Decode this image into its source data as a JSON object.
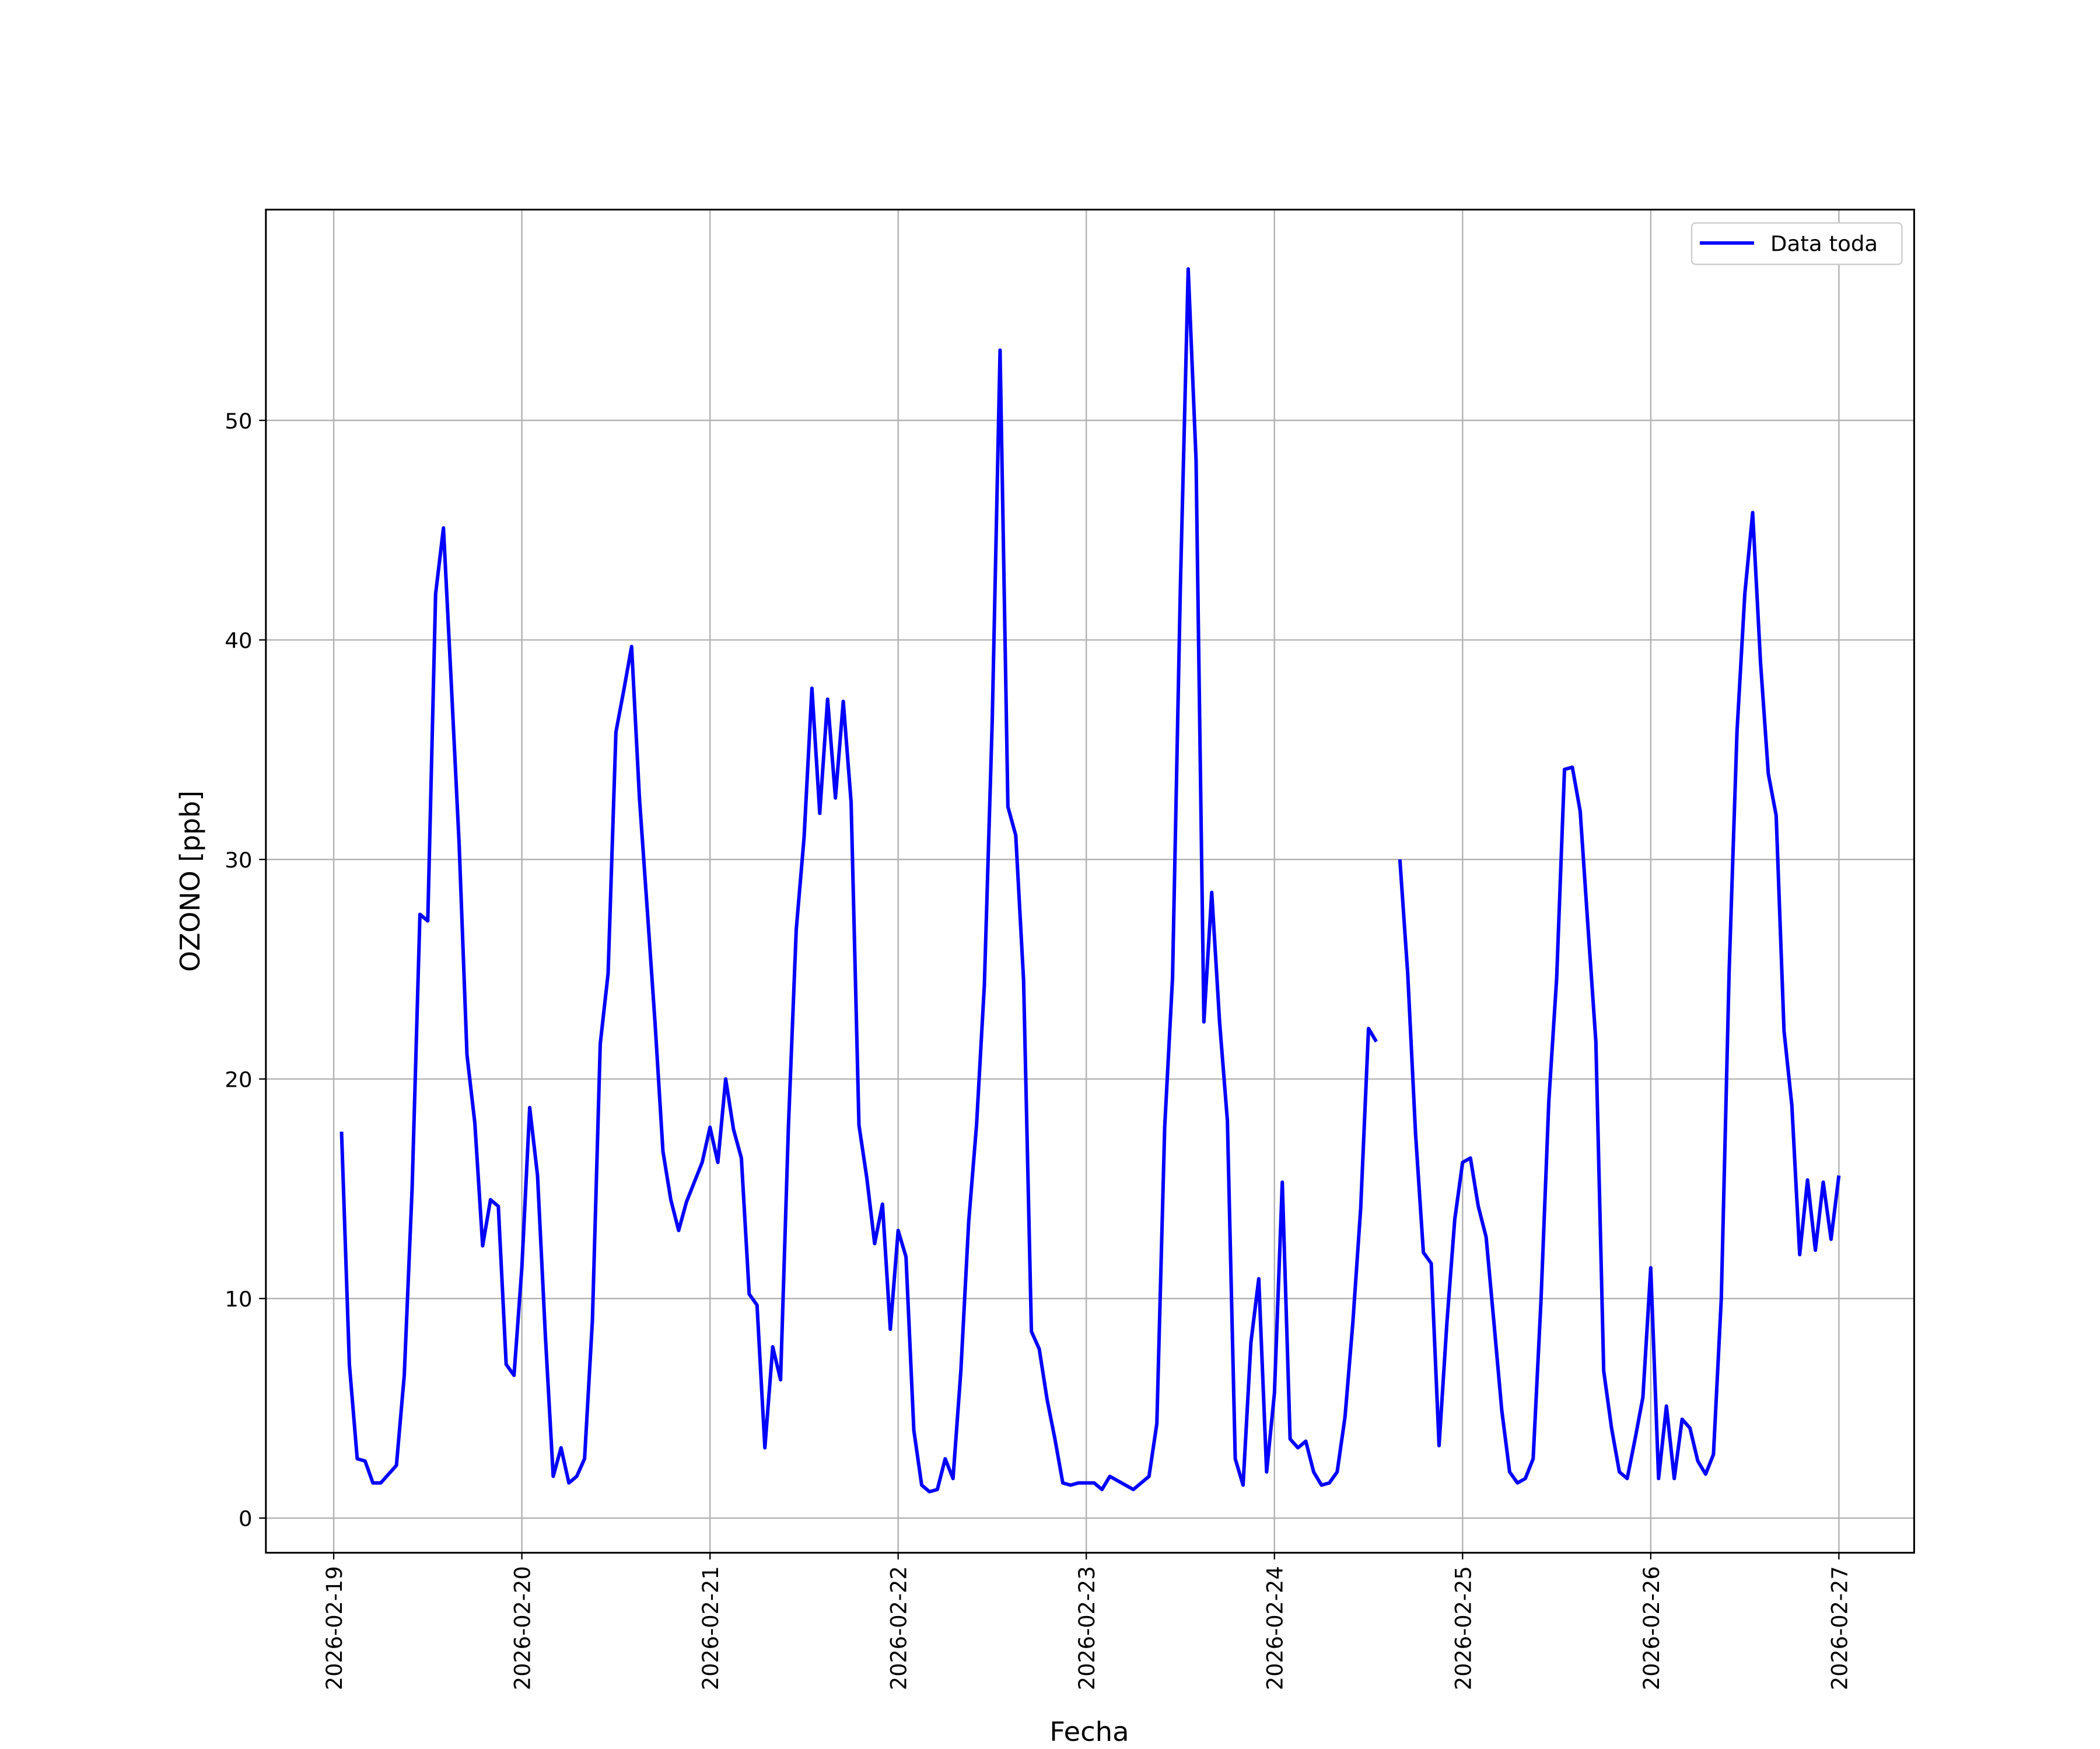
{
  "chart_data": {
    "type": "line",
    "xlabel": "Fecha",
    "ylabel": "OZONO [ppb]",
    "x": [
      "2026-02-19 01:00",
      "2026-02-19 02:00",
      "2026-02-19 03:00",
      "2026-02-19 04:00",
      "2026-02-19 05:00",
      "2026-02-19 06:00",
      "2026-02-19 07:00",
      "2026-02-19 08:00",
      "2026-02-19 09:00",
      "2026-02-19 10:00",
      "2026-02-19 11:00",
      "2026-02-19 12:00",
      "2026-02-19 13:00",
      "2026-02-19 14:00",
      "2026-02-19 15:00",
      "2026-02-19 16:00",
      "2026-02-19 17:00",
      "2026-02-19 18:00",
      "2026-02-19 19:00",
      "2026-02-19 20:00",
      "2026-02-19 21:00",
      "2026-02-19 22:00",
      "2026-02-19 23:00",
      "2026-02-20 00:00",
      "2026-02-20 01:00",
      "2026-02-20 02:00",
      "2026-02-20 03:00",
      "2026-02-20 04:00",
      "2026-02-20 05:00",
      "2026-02-20 06:00",
      "2026-02-20 07:00",
      "2026-02-20 08:00",
      "2026-02-20 09:00",
      "2026-02-20 10:00",
      "2026-02-20 11:00",
      "2026-02-20 12:00",
      "2026-02-20 13:00",
      "2026-02-20 14:00",
      "2026-02-20 15:00",
      "2026-02-20 16:00",
      "2026-02-20 17:00",
      "2026-02-20 18:00",
      "2026-02-20 19:00",
      "2026-02-20 20:00",
      "2026-02-20 21:00",
      "2026-02-20 22:00",
      "2026-02-20 23:00",
      "2026-02-21 00:00",
      "2026-02-21 01:00",
      "2026-02-21 02:00",
      "2026-02-21 03:00",
      "2026-02-21 04:00",
      "2026-02-21 05:00",
      "2026-02-21 06:00",
      "2026-02-21 07:00",
      "2026-02-21 08:00",
      "2026-02-21 09:00",
      "2026-02-21 10:00",
      "2026-02-21 11:00",
      "2026-02-21 12:00",
      "2026-02-21 13:00",
      "2026-02-21 14:00",
      "2026-02-21 15:00",
      "2026-02-21 16:00",
      "2026-02-21 17:00",
      "2026-02-21 18:00",
      "2026-02-21 19:00",
      "2026-02-21 20:00",
      "2026-02-21 21:00",
      "2026-02-21 22:00",
      "2026-02-21 23:00",
      "2026-02-22 00:00",
      "2026-02-22 01:00",
      "2026-02-22 02:00",
      "2026-02-22 03:00",
      "2026-02-22 04:00",
      "2026-02-22 05:00",
      "2026-02-22 06:00",
      "2026-02-22 07:00",
      "2026-02-22 08:00",
      "2026-02-22 09:00",
      "2026-02-22 10:00",
      "2026-02-22 11:00",
      "2026-02-22 12:00",
      "2026-02-22 13:00",
      "2026-02-22 14:00",
      "2026-02-22 15:00",
      "2026-02-22 16:00",
      "2026-02-22 17:00",
      "2026-02-22 18:00",
      "2026-02-22 19:00",
      "2026-02-22 20:00",
      "2026-02-22 21:00",
      "2026-02-22 22:00",
      "2026-02-22 23:00",
      "2026-02-23 00:00",
      "2026-02-23 01:00",
      "2026-02-23 02:00",
      "2026-02-23 03:00",
      "2026-02-23 04:00",
      "2026-02-23 05:00",
      "2026-02-23 06:00",
      "2026-02-23 07:00",
      "2026-02-23 08:00",
      "2026-02-23 09:00",
      "2026-02-23 10:00",
      "2026-02-23 11:00",
      "2026-02-23 12:00",
      "2026-02-23 13:00",
      "2026-02-23 14:00",
      "2026-02-23 15:00",
      "2026-02-23 16:00",
      "2026-02-23 17:00",
      "2026-02-23 18:00",
      "2026-02-23 19:00",
      "2026-02-23 20:00",
      "2026-02-23 21:00",
      "2026-02-23 22:00",
      "2026-02-23 23:00",
      "2026-02-24 00:00",
      "2026-02-24 01:00",
      "2026-02-24 02:00",
      "2026-02-24 03:00",
      "2026-02-24 04:00",
      "2026-02-24 05:00",
      "2026-02-24 06:00",
      "2026-02-24 07:00",
      "2026-02-24 08:00",
      "2026-02-24 09:00",
      "2026-02-24 10:00",
      "2026-02-24 11:00",
      "2026-02-24 12:00",
      "2026-02-24 13:00",
      "2026-02-24 14:00",
      "2026-02-24 15:00",
      "2026-02-24 16:00",
      "2026-02-24 17:00",
      "2026-02-24 18:00",
      "2026-02-24 19:00",
      "2026-02-24 20:00",
      "2026-02-24 21:00",
      "2026-02-24 22:00",
      "2026-02-24 23:00",
      "2026-02-25 00:00",
      "2026-02-25 01:00",
      "2026-02-25 02:00",
      "2026-02-25 03:00",
      "2026-02-25 04:00",
      "2026-02-25 05:00",
      "2026-02-25 06:00",
      "2026-02-25 07:00",
      "2026-02-25 08:00",
      "2026-02-25 09:00",
      "2026-02-25 10:00",
      "2026-02-25 11:00",
      "2026-02-25 12:00",
      "2026-02-25 13:00",
      "2026-02-25 14:00",
      "2026-02-25 15:00",
      "2026-02-25 16:00",
      "2026-02-25 17:00",
      "2026-02-25 18:00",
      "2026-02-25 19:00",
      "2026-02-25 20:00",
      "2026-02-25 21:00",
      "2026-02-25 22:00",
      "2026-02-25 23:00",
      "2026-02-26 00:00",
      "2026-02-26 01:00",
      "2026-02-26 02:00",
      "2026-02-26 03:00",
      "2026-02-26 04:00",
      "2026-02-26 05:00",
      "2026-02-26 06:00",
      "2026-02-26 07:00",
      "2026-02-26 08:00",
      "2026-02-26 09:00",
      "2026-02-26 10:00",
      "2026-02-26 11:00",
      "2026-02-26 12:00",
      "2026-02-26 13:00",
      "2026-02-26 14:00",
      "2026-02-26 15:00",
      "2026-02-26 16:00",
      "2026-02-26 17:00",
      "2026-02-26 18:00",
      "2026-02-26 19:00",
      "2026-02-26 20:00",
      "2026-02-26 21:00",
      "2026-02-26 22:00",
      "2026-02-26 23:00",
      "2026-02-27 00:00"
    ],
    "series": [
      {
        "name": "Data toda",
        "color": "#0000ff",
        "values": [
          17.6,
          7.0,
          2.7,
          2.6,
          1.6,
          1.6,
          2.0,
          2.4,
          6.5,
          15.0,
          27.5,
          27.2,
          42.1,
          45.1,
          38.0,
          30.7,
          21.1,
          18.0,
          12.4,
          14.5,
          14.2,
          7.0,
          6.5,
          11.4,
          18.7,
          15.6,
          8.3,
          1.9,
          3.2,
          1.6,
          1.9,
          2.7,
          9.0,
          21.6,
          24.8,
          35.8,
          37.7,
          39.7,
          32.8,
          27.7,
          22.5,
          16.7,
          14.5,
          13.1,
          14.4,
          15.3,
          16.2,
          17.8,
          16.2,
          20.0,
          17.7,
          16.4,
          10.2,
          9.7,
          3.2,
          7.8,
          6.3,
          17.8,
          26.8,
          31.0,
          37.8,
          32.1,
          37.3,
          32.8,
          37.2,
          32.6,
          17.9,
          15.5,
          12.5,
          14.3,
          8.6,
          13.1,
          11.9,
          4.0,
          1.5,
          1.2,
          1.3,
          2.7,
          1.8,
          6.7,
          13.5,
          17.9,
          24.3,
          36.3,
          53.2,
          32.4,
          31.1,
          24.5,
          8.5,
          7.7,
          5.4,
          3.6,
          1.6,
          1.5,
          1.6,
          1.6,
          1.6,
          1.3,
          1.9,
          1.7,
          1.5,
          1.3,
          1.6,
          1.9,
          4.3,
          17.8,
          24.6,
          42.4,
          56.9,
          48.2,
          22.6,
          28.5,
          22.6,
          18.1,
          2.7,
          1.5,
          8.0,
          10.9,
          2.1,
          5.7,
          15.3,
          3.6,
          3.2,
          3.5,
          2.1,
          1.5,
          1.6,
          2.1,
          4.6,
          8.9,
          14.1,
          22.3,
          21.7,
          null,
          null,
          30.0,
          24.8,
          17.5,
          12.1,
          11.6,
          3.3,
          8.9,
          13.6,
          16.2,
          16.4,
          14.2,
          12.8,
          8.9,
          4.9,
          2.1,
          1.6,
          1.8,
          2.7,
          9.9,
          19.0,
          24.6,
          34.1,
          34.2,
          32.2,
          26.9,
          21.7,
          6.7,
          4.1,
          2.1,
          1.8,
          3.6,
          5.5,
          11.4,
          1.8,
          5.1,
          1.8,
          4.5,
          4.1,
          2.6,
          2.0,
          2.9,
          10.0,
          24.9,
          35.8,
          42.1,
          45.8,
          39.0,
          33.9,
          32.0,
          22.2,
          18.8,
          12.0,
          15.4,
          12.2,
          15.3,
          12.7,
          15.6
        ]
      }
    ],
    "xlim": [
      "2026-02-18 15:21",
      "2026-02-27 09:36"
    ],
    "xticks": [
      "2026-02-19",
      "2026-02-20",
      "2026-02-21",
      "2026-02-22",
      "2026-02-23",
      "2026-02-24",
      "2026-02-25",
      "2026-02-26",
      "2026-02-27"
    ],
    "ylim": [
      -1.58,
      59.6
    ],
    "yticks": [
      0,
      10,
      20,
      30,
      40,
      50
    ],
    "grid": true,
    "legend": "upper right"
  }
}
